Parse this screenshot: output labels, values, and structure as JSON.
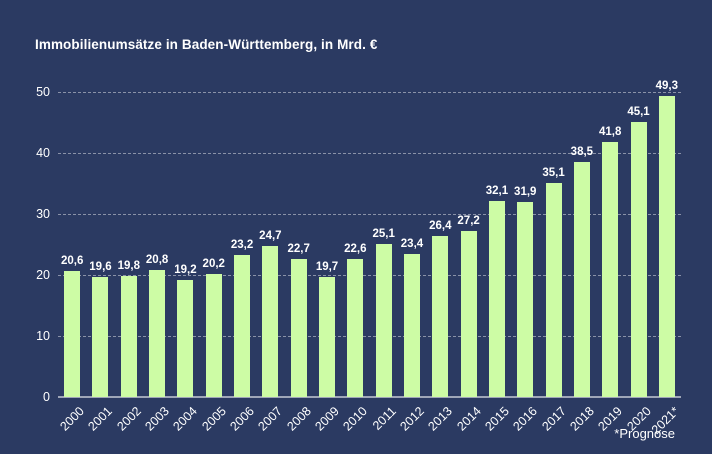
{
  "title": "Immobilienumsätze in Baden-Württemberg, in Mrd. €",
  "footnote": "*Prognose",
  "colors": {
    "background": "#2b3a62",
    "bar": "#cdfca5",
    "text": "#ffffff",
    "gridline": "rgba(255,255,255,0.45)"
  },
  "chart_data": {
    "type": "bar",
    "title": "Immobilienumsätze in Baden-Württemberg, in Mrd. €",
    "categories": [
      "2000",
      "2001",
      "2002",
      "2003",
      "2004",
      "2005",
      "2006",
      "2007",
      "2008",
      "2009",
      "2010",
      "2011",
      "2012",
      "2013",
      "2014",
      "2015",
      "2016",
      "2017",
      "2018",
      "2019",
      "2020",
      "2021*"
    ],
    "values": [
      20.6,
      19.6,
      19.8,
      20.8,
      19.2,
      20.2,
      23.2,
      24.7,
      22.7,
      19.7,
      22.6,
      25.1,
      23.4,
      26.4,
      27.2,
      32.1,
      31.9,
      35.1,
      38.5,
      41.8,
      45.1,
      49.3
    ],
    "value_labels": [
      "20,6",
      "19,6",
      "19,8",
      "20,8",
      "19,2",
      "20,2",
      "23,2",
      "24,7",
      "22,7",
      "19,7",
      "22,6",
      "25,1",
      "23,4",
      "26,4",
      "27,2",
      "32,1",
      "31,9",
      "35,1",
      "38,5",
      "41,8",
      "45,1",
      "49,3"
    ],
    "xlabel": "",
    "ylabel": "",
    "ylim": [
      0,
      50
    ],
    "yticks": [
      0,
      10,
      20,
      30,
      40,
      50
    ],
    "grid": true,
    "legend": false,
    "footnote": "*Prognose"
  }
}
